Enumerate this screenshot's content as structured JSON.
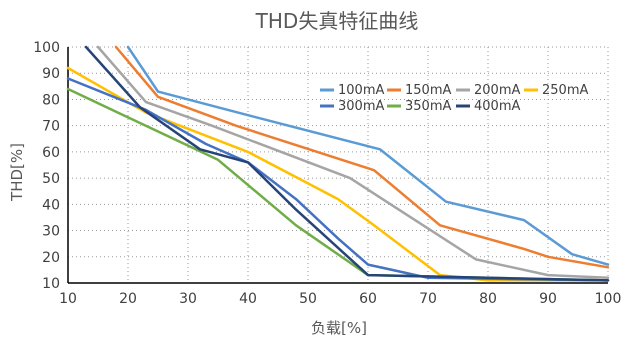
{
  "chart_data": {
    "type": "line",
    "title": "THD失真特征曲线",
    "xlabel": "负载[%]",
    "ylabel": "THD[%]",
    "xlim": [
      10,
      100
    ],
    "ylim": [
      10,
      100
    ],
    "x_ticks": [
      10,
      20,
      30,
      40,
      50,
      60,
      70,
      80,
      90,
      100
    ],
    "y_ticks": [
      10,
      20,
      30,
      40,
      50,
      60,
      70,
      80,
      90,
      100
    ],
    "grid": "dotted",
    "legend": "inside-top-right",
    "series": [
      {
        "name": "100mA",
        "color": "#5B9BD5",
        "points": [
          [
            20,
            100
          ],
          [
            25,
            83
          ],
          [
            40,
            74
          ],
          [
            62,
            61
          ],
          [
            73,
            41
          ],
          [
            86,
            34
          ],
          [
            94,
            21
          ],
          [
            100,
            17
          ]
        ]
      },
      {
        "name": "150mA",
        "color": "#ED7D31",
        "points": [
          [
            18,
            100
          ],
          [
            25,
            81
          ],
          [
            38,
            70
          ],
          [
            61,
            53
          ],
          [
            72,
            32
          ],
          [
            86,
            23
          ],
          [
            90,
            20
          ],
          [
            100,
            16
          ]
        ]
      },
      {
        "name": "200mA",
        "color": "#A5A5A5",
        "points": [
          [
            15,
            100
          ],
          [
            23,
            79
          ],
          [
            34,
            70
          ],
          [
            57,
            50
          ],
          [
            78,
            19
          ],
          [
            90,
            13
          ],
          [
            100,
            12
          ]
        ]
      },
      {
        "name": "250mA",
        "color": "#FFC000",
        "points": [
          [
            10,
            92
          ],
          [
            23,
            75
          ],
          [
            40,
            60
          ],
          [
            55,
            42
          ],
          [
            61,
            32
          ],
          [
            72,
            13
          ],
          [
            80,
            11
          ],
          [
            100,
            11
          ]
        ]
      },
      {
        "name": "300mA",
        "color": "#4472C4",
        "points": [
          [
            10,
            88
          ],
          [
            23,
            76
          ],
          [
            33,
            63
          ],
          [
            40,
            56
          ],
          [
            48,
            42
          ],
          [
            55,
            27
          ],
          [
            60,
            17
          ],
          [
            66,
            14
          ],
          [
            70,
            12
          ],
          [
            100,
            11
          ]
        ]
      },
      {
        "name": "350mA",
        "color": "#70AD47",
        "points": [
          [
            10,
            84
          ],
          [
            35,
            57
          ],
          [
            48,
            32
          ],
          [
            60,
            13
          ],
          [
            100,
            11
          ]
        ]
      },
      {
        "name": "400mA",
        "color": "#264478",
        "points": [
          [
            13,
            100
          ],
          [
            22,
            77
          ],
          [
            32,
            61
          ],
          [
            40,
            56
          ],
          [
            48,
            38
          ],
          [
            60,
            13
          ],
          [
            100,
            11
          ]
        ]
      }
    ]
  }
}
